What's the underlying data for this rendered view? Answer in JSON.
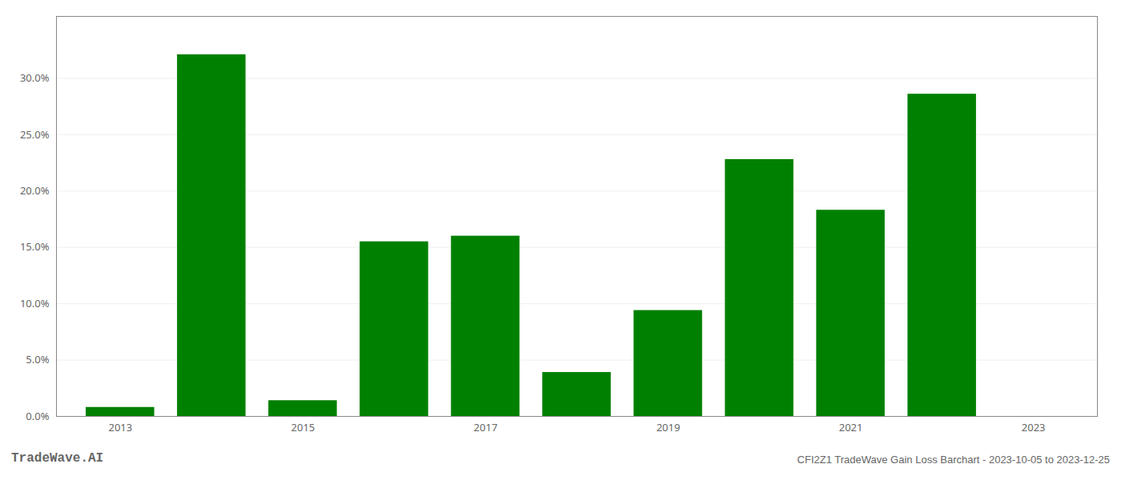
{
  "chart_data": {
    "type": "bar",
    "x": [
      2013,
      2014,
      2015,
      2016,
      2017,
      2018,
      2019,
      2020,
      2021,
      2022,
      2023
    ],
    "values": [
      0.008,
      0.321,
      0.014,
      0.155,
      0.16,
      0.039,
      0.094,
      0.228,
      0.183,
      0.286,
      0.0
    ],
    "color": "#008000",
    "xlim": [
      2012.3,
      2023.7
    ],
    "xticks": [
      2013,
      2015,
      2017,
      2019,
      2021,
      2023
    ],
    "ylim": [
      0.0,
      0.355
    ],
    "yticks": [
      {
        "value": 0.0,
        "label": "0.0%"
      },
      {
        "value": 0.05,
        "label": "5.0%"
      },
      {
        "value": 0.1,
        "label": "10.0%"
      },
      {
        "value": 0.15,
        "label": "15.0%"
      },
      {
        "value": 0.2,
        "label": "20.0%"
      },
      {
        "value": 0.25,
        "label": "25.0%"
      },
      {
        "value": 0.3,
        "label": "30.0%"
      }
    ],
    "grid": true,
    "annotations": [
      "TradeWave.AI",
      "CFI2Z1 TradeWave Gain Loss Barchart - 2023-10-05 to 2023-12-25"
    ]
  }
}
